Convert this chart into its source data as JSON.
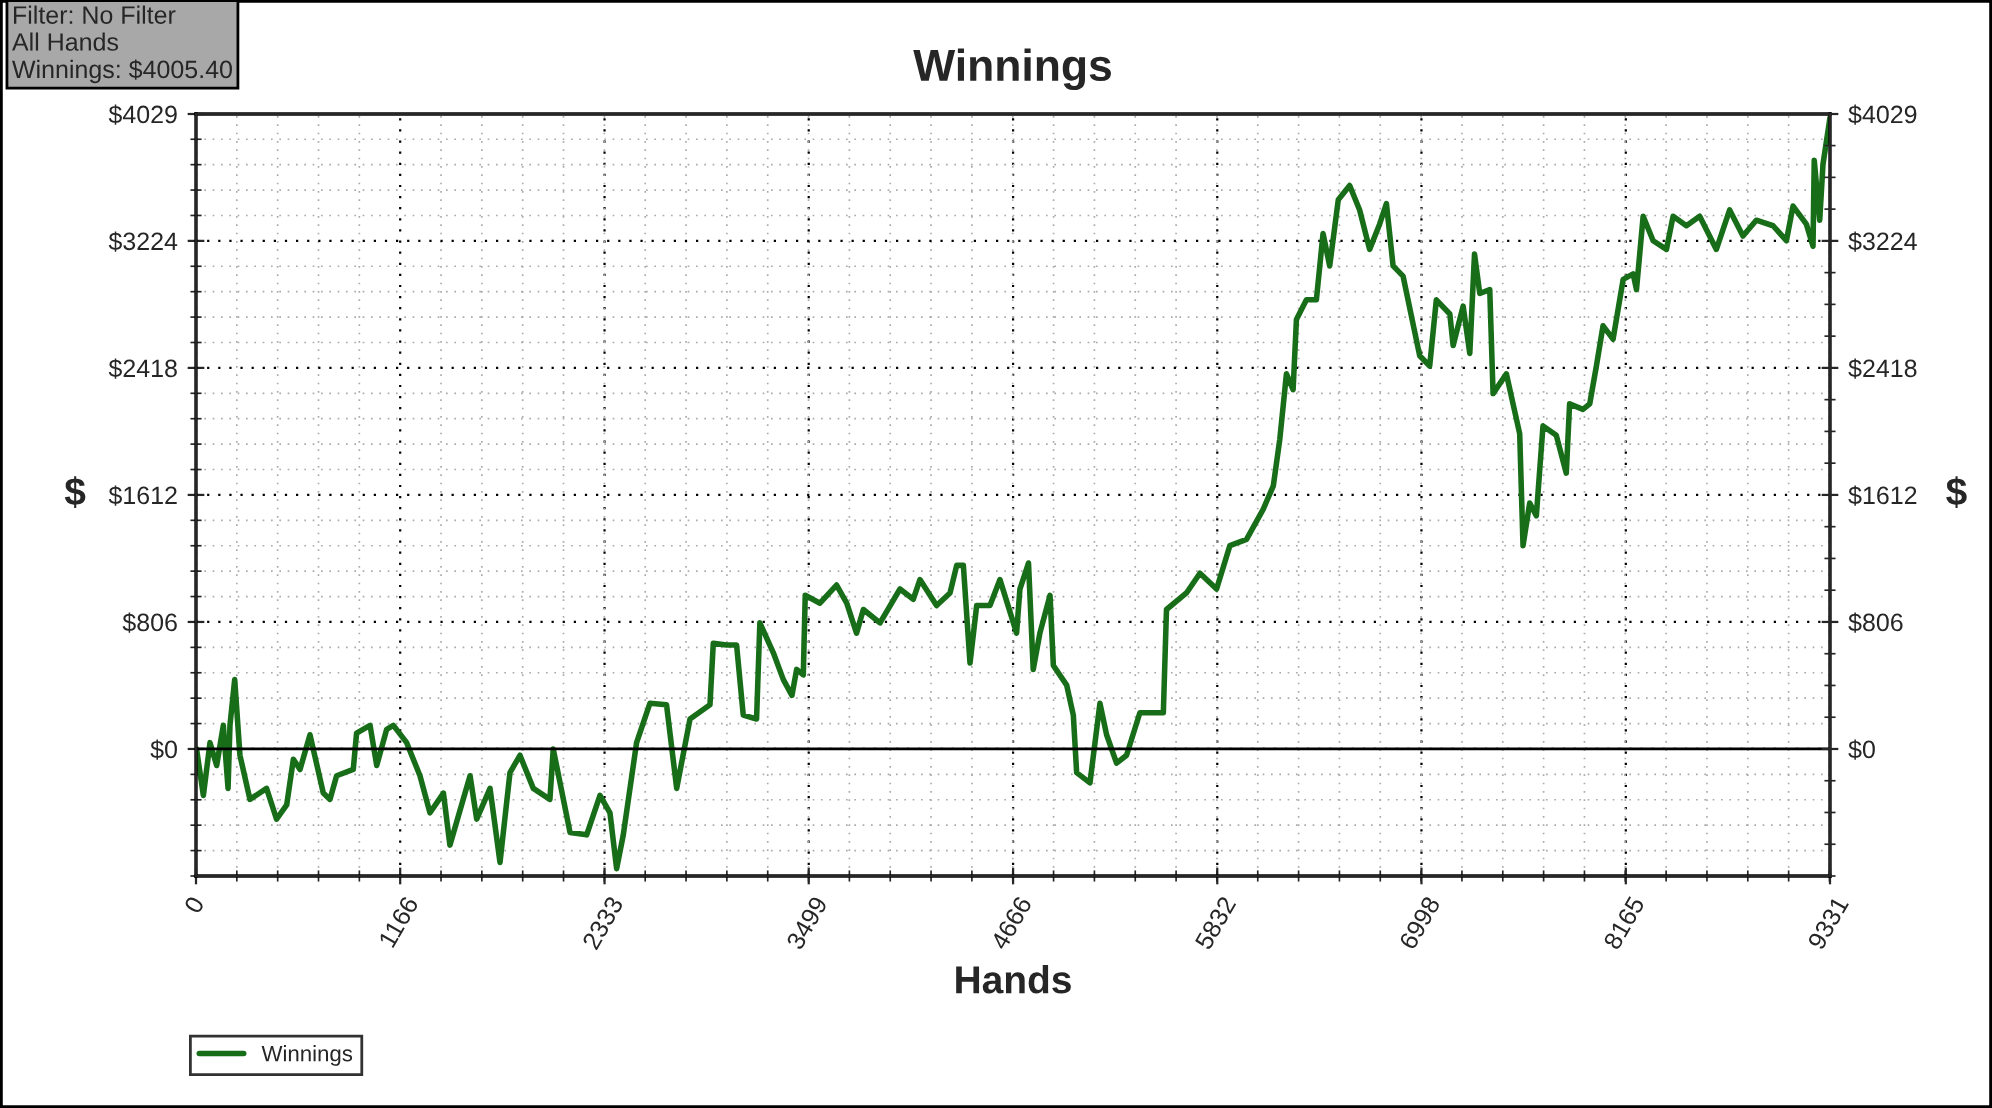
{
  "chart_data": {
    "type": "line",
    "title": "Winnings",
    "xlabel": "Hands",
    "ylabel": "$",
    "y2label": "$",
    "annotations": [
      "Filter: No Filter\nAll Hands\nWinnings: $4005.40"
    ],
    "x": [
      3,
      42,
      80,
      118,
      156,
      183,
      194,
      221,
      251,
      308,
      403,
      460,
      518,
      556,
      594,
      651,
      727,
      765,
      803,
      898,
      917,
      994,
      1032,
      1089,
      1127,
      1203,
      1279,
      1336,
      1413,
      1450,
      1565,
      1603,
      1679,
      1736,
      1793,
      1850,
      1926,
      2021,
      2040,
      2136,
      2231,
      2307,
      2364,
      2402,
      2440,
      2516,
      2592,
      2687,
      2745,
      2821,
      2935,
      2954,
      3030,
      3087,
      3125,
      3201,
      3220,
      3297,
      3354,
      3403,
      3430,
      3468,
      3479,
      3563,
      3658,
      3716,
      3772,
      3811,
      3906,
      4020,
      4096,
      4134,
      4229,
      4306,
      4344,
      4382,
      4420,
      4458,
      4534,
      4591,
      4686,
      4705,
      4754,
      4781,
      4819,
      4877,
      4896,
      4972,
      5010,
      5029,
      5105,
      5162,
      5200,
      5257,
      5314,
      5390,
      5524,
      5542,
      5656,
      5733,
      5828,
      5904,
      5999,
      6094,
      6152,
      6189,
      6227,
      6265,
      6284,
      6341,
      6398,
      6436,
      6474,
      6523,
      6588,
      6645,
      6702,
      6759,
      6798,
      6836,
      6893,
      6988,
      7045,
      7083,
      7160,
      7179,
      7236,
      7274,
      7301,
      7331,
      7388,
      7407,
      7483,
      7559,
      7578,
      7616,
      7654,
      7692,
      7768,
      7825,
      7844,
      7920,
      7959,
      7997,
      8035,
      8092,
      8150,
      8207,
      8226,
      8264,
      8321,
      8397,
      8435,
      8511,
      8587,
      8682,
      8758,
      8834,
      8910,
      9006,
      9082,
      9120,
      9196,
      9234,
      9241,
      9272,
      9291,
      9331
    ],
    "series": [
      {
        "name": "Winnings",
        "color": "#186e18",
        "values": [
          0,
          -295,
          40,
          -105,
          150,
          -250,
          150,
          440,
          -40,
          -320,
          -250,
          -445,
          -355,
          -65,
          -130,
          90,
          -280,
          -320,
          -170,
          -130,
          100,
          150,
          -105,
          125,
          150,
          40,
          -170,
          -405,
          -280,
          -610,
          -170,
          -445,
          -250,
          -720,
          -150,
          -40,
          -250,
          -320,
          0,
          -530,
          -545,
          -295,
          -405,
          -760,
          -545,
          40,
          290,
          280,
          -250,
          190,
          280,
          670,
          660,
          660,
          215,
          190,
          800,
          610,
          440,
          340,
          505,
          470,
          975,
          925,
          1040,
          925,
          735,
          885,
          800,
          1015,
          950,
          1075,
          910,
          990,
          1165,
          1165,
          545,
          910,
          910,
          1075,
          735,
          1015,
          1180,
          505,
          735,
          975,
          530,
          405,
          215,
          -150,
          -215,
          290,
          90,
          -90,
          -40,
          230,
          230,
          885,
          990,
          1115,
          1015,
          1290,
          1330,
          1520,
          1670,
          1965,
          2380,
          2280,
          2725,
          2850,
          2850,
          3270,
          3065,
          3485,
          3575,
          3420,
          3170,
          3330,
          3460,
          3065,
          3000,
          2495,
          2430,
          2850,
          2760,
          2560,
          2810,
          2510,
          3140,
          2890,
          2915,
          2255,
          2380,
          2000,
          1290,
          1560,
          1480,
          2050,
          1990,
          1750,
          2190,
          2155,
          2190,
          2430,
          2685,
          2600,
          2980,
          3015,
          2915,
          3380,
          3225,
          3170,
          3380,
          3320,
          3380,
          3170,
          3420,
          3255,
          3355,
          3320,
          3225,
          3445,
          3330,
          3190,
          3735,
          3355,
          3710,
          4005
        ]
      }
    ],
    "xlim": [
      0,
      9331
    ],
    "xticks": [
      0,
      1166,
      2333,
      3499,
      4666,
      5832,
      6998,
      8165,
      9331
    ],
    "ylim": [
      -806,
      4029
    ],
    "yticks": [
      {
        "value": 0,
        "label": "$0"
      },
      {
        "value": 806,
        "label": "$806"
      },
      {
        "value": 1612,
        "label": "$1612"
      },
      {
        "value": 2418,
        "label": "$2418"
      },
      {
        "value": 3224,
        "label": "$3224"
      },
      {
        "value": 4029,
        "label": "$4029"
      }
    ],
    "y2lim": [
      -806,
      4029
    ],
    "y2ticks": [
      {
        "value": 0,
        "label": "$0"
      },
      {
        "value": 806,
        "label": "$806"
      },
      {
        "value": 1612,
        "label": "$1612"
      },
      {
        "value": 2418,
        "label": "$2418"
      },
      {
        "value": 3224,
        "label": "$3224"
      },
      {
        "value": 4029,
        "label": "$4029"
      }
    ],
    "ref_lines": [
      {
        "axis": "y",
        "value": 0,
        "color": "#000000",
        "line_style": "solid"
      }
    ],
    "grid": true,
    "legend": "bottom left",
    "marker": "none",
    "line_style": "solid"
  }
}
